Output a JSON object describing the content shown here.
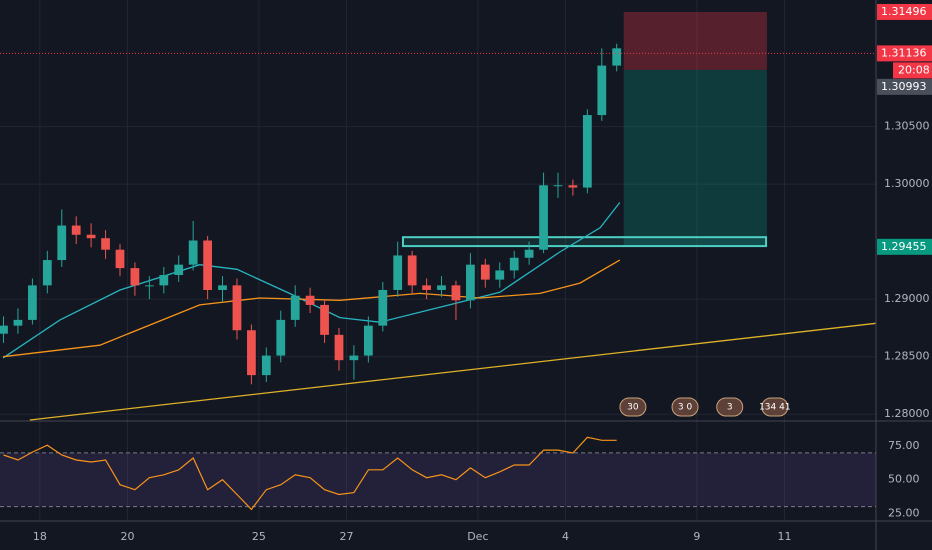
{
  "chart_data": {
    "type": "candlestick",
    "x": [
      -0.83,
      -0.5,
      -0.17,
      0.17,
      0.5,
      0.83,
      1.17,
      1.5,
      1.83,
      2.17,
      2.5,
      2.83,
      3.17,
      3.5,
      3.83,
      4.17,
      4.5,
      4.83,
      5.17,
      5.5,
      5.83,
      6.17,
      6.5,
      6.83,
      7.17,
      7.5,
      7.83,
      8.17,
      8.5,
      8.83,
      9.17,
      9.5,
      9.83,
      10.17,
      10.5,
      10.83,
      11.17,
      11.5,
      11.83,
      12.17,
      12.5,
      12.83,
      13.17
    ],
    "open": [
      1.287,
      1.2877,
      1.2882,
      1.2912,
      1.2934,
      1.2964,
      1.2956,
      1.2953,
      1.2943,
      1.2927,
      1.2912,
      1.2912,
      1.2921,
      1.293,
      1.2951,
      1.2908,
      1.2912,
      1.2873,
      1.2834,
      1.2851,
      1.2882,
      1.2903,
      1.2895,
      1.2869,
      1.2847,
      1.2851,
      1.2877,
      1.2908,
      1.2938,
      1.2912,
      1.2908,
      1.2912,
      1.2899,
      1.293,
      1.2917,
      1.2925,
      1.2936,
      1.2943,
      1.2999,
      1.2999,
      1.2997,
      1.306,
      1.3103
    ],
    "high": [
      1.2885,
      1.2892,
      1.2918,
      1.2942,
      1.2978,
      1.2972,
      1.2966,
      1.296,
      1.2948,
      1.2932,
      1.292,
      1.2928,
      1.2938,
      1.2968,
      1.2955,
      1.292,
      1.2918,
      1.2878,
      1.2858,
      1.289,
      1.2912,
      1.291,
      1.29,
      1.2875,
      1.286,
      1.2885,
      1.2915,
      1.295,
      1.2942,
      1.2918,
      1.292,
      1.2916,
      1.294,
      1.2935,
      1.2932,
      1.2942,
      1.295,
      1.301,
      1.301,
      1.3004,
      1.3065,
      1.3118,
      1.3122
    ],
    "low": [
      1.2862,
      1.287,
      1.2878,
      1.2905,
      1.2928,
      1.2948,
      1.2945,
      1.2935,
      1.292,
      1.2903,
      1.29,
      1.2905,
      1.2915,
      1.2925,
      1.29,
      1.2898,
      1.2865,
      1.2826,
      1.2828,
      1.2845,
      1.2876,
      1.2888,
      1.2862,
      1.2838,
      1.283,
      1.2845,
      1.2872,
      1.2902,
      1.2905,
      1.29,
      1.2902,
      1.2882,
      1.2892,
      1.291,
      1.291,
      1.2918,
      1.293,
      1.294,
      1.2988,
      1.299,
      1.2992,
      1.3055,
      1.3098
    ],
    "close": [
      1.2877,
      1.2882,
      1.2912,
      1.2934,
      1.2964,
      1.2956,
      1.2953,
      1.2943,
      1.2927,
      1.2912,
      1.2912,
      1.2921,
      1.293,
      1.2951,
      1.2908,
      1.2912,
      1.2873,
      1.2834,
      1.2851,
      1.2882,
      1.2903,
      1.2895,
      1.2869,
      1.2847,
      1.2851,
      1.2877,
      1.2908,
      1.2938,
      1.2912,
      1.2908,
      1.2912,
      1.2899,
      1.293,
      1.2917,
      1.2925,
      1.2936,
      1.2943,
      1.2999,
      1.2999,
      1.2997,
      1.306,
      1.3103,
      1.3118
    ],
    "up_color": "#26a69a",
    "down_color": "#ef5350",
    "xlim": [
      -0.91,
      19.09
    ],
    "xticks": [
      {
        "value": 0,
        "label": "18"
      },
      {
        "value": 2,
        "label": "20"
      },
      {
        "value": 5,
        "label": "25"
      },
      {
        "value": 7,
        "label": "27"
      },
      {
        "value": 10,
        "label": "Dec"
      },
      {
        "value": 12,
        "label": "4"
      },
      {
        "value": 15,
        "label": "9"
      },
      {
        "value": 17,
        "label": "11"
      }
    ],
    "ylim": [
      1.2795,
      1.316
    ],
    "yticks": [
      {
        "value": 1.28,
        "label": "1.28000"
      },
      {
        "value": 1.285,
        "label": "1.28500"
      },
      {
        "value": 1.29,
        "label": "1.29000"
      },
      {
        "value": 1.3,
        "label": "1.30000"
      },
      {
        "value": 1.305,
        "label": "1.30500"
      }
    ],
    "grid": true,
    "overlays": [
      {
        "color": "#26b5c0",
        "x": [
          -0.84,
          0.46,
          1.83,
          3.65,
          4.5,
          5.7,
          6.85,
          7.76,
          9.13,
          10.5,
          11.87,
          12.79,
          13.24
        ],
        "values": [
          1.2849,
          1.2882,
          1.2908,
          1.293,
          1.2926,
          1.2905,
          1.2884,
          1.288,
          1.2893,
          1.2906,
          1.2941,
          1.2962,
          1.2984
        ]
      },
      {
        "color": "#f7931a",
        "x": [
          -0.84,
          1.37,
          3.65,
          5.02,
          6.85,
          8.68,
          10.05,
          11.42,
          12.33,
          13.24
        ],
        "values": [
          1.285,
          1.286,
          1.2895,
          1.2901,
          1.2899,
          1.2905,
          1.2901,
          1.2905,
          1.2914,
          1.2934
        ]
      },
      {
        "color": "#e0b228",
        "x": [
          -0.23,
          19.09
        ],
        "values": [
          1.2795,
          1.2879
        ]
      }
    ],
    "zone": {
      "x": [
        8.29,
        16.58
      ],
      "values": [
        1.2947,
        1.2953
      ],
      "color": "#4dd0c4"
    },
    "position": {
      "x": [
        13.33,
        16.6
      ],
      "stop": 1.31496,
      "entry": 1.30993,
      "target": 1.29455
    },
    "current_price": 1.31136,
    "countdown": "20:08",
    "price_labels": [
      {
        "value": 1.31496,
        "color": "#f23645"
      },
      {
        "value": 1.31136,
        "color": "#f23645"
      },
      {
        "value": 1.30993,
        "color": "#4a4f5c"
      },
      {
        "value": 1.29455,
        "color": "#089981"
      }
    ],
    "events": [
      {
        "x": 13.54,
        "label": "30"
      },
      {
        "x": 14.73,
        "label": "3 0"
      },
      {
        "x": 15.75,
        "label": "3"
      },
      {
        "x": 16.78,
        "label": "134 41"
      }
    ],
    "rsi": {
      "color": "#f7931a",
      "values": [
        68.4,
        64.7,
        70.6,
        75.7,
        68.4,
        64.7,
        63.2,
        64.7,
        46.3,
        42.6,
        51.5,
        53.7,
        57.4,
        66.2,
        42.6,
        50.0,
        39.0,
        27.9,
        42.6,
        46.3,
        53.7,
        51.5,
        42.6,
        39.0,
        40.4,
        57.4,
        57.4,
        66.2,
        57.4,
        51.5,
        53.7,
        50.0,
        58.8,
        51.5,
        55.9,
        61.0,
        61.0,
        72.1,
        72.1,
        69.9,
        81.6,
        79.4,
        79.4
      ],
      "ylim": [
        20,
        93
      ],
      "yticks": [
        {
          "value": 25,
          "label": "25.00"
        },
        {
          "value": 50,
          "label": "50.00"
        },
        {
          "value": 75,
          "label": "75.00"
        }
      ],
      "bands": [
        30,
        70
      ]
    }
  }
}
